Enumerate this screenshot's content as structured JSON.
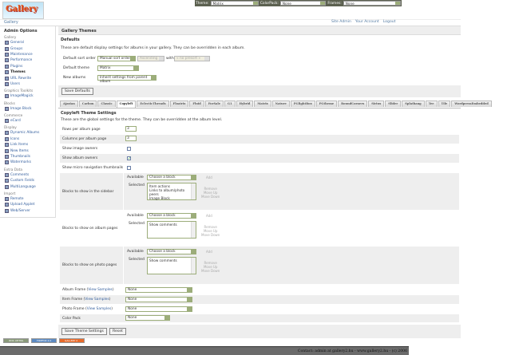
{
  "logo": "Gallery",
  "topbar": {
    "theme_label": "Theme:",
    "theme_value": "Matrix",
    "colorpack_label": "ColorPack:",
    "colorpack_value": "None",
    "frames_label": "Frames:",
    "frames_value": "None"
  },
  "breadcrumb": "Gallery",
  "toplinks": [
    "Site Admin",
    "Your Account",
    "Logout"
  ],
  "sidebar": {
    "title": "Admin Options",
    "groups": [
      {
        "label": "Gallery",
        "items": [
          "General",
          "Groups",
          "Maintenance",
          "Performance",
          "Plugins",
          "Themes",
          "URL Rewrite",
          "Users"
        ]
      },
      {
        "label": "Graphics Toolkits",
        "items": [
          "ImageMagick"
        ]
      },
      {
        "label": "Blocks",
        "items": [
          "Image Block"
        ]
      },
      {
        "label": "Commerce",
        "items": [
          "eCard"
        ]
      },
      {
        "label": "Display",
        "items": [
          "Dynamic Albums",
          "Icons",
          "Link Items",
          "New Items",
          "Thumbnails",
          "Watermarks"
        ]
      },
      {
        "label": "Extra Data",
        "items": [
          "Comments",
          "Custom Fields",
          "MultiLanguage"
        ]
      },
      {
        "label": "Import",
        "items": [
          "Remote",
          "Upload Applet",
          "Web/Server"
        ]
      }
    ]
  },
  "page_title": "Gallery Themes",
  "defaults": {
    "title": "Defaults",
    "description": "These are default display settings for albums in your gallery. They can be overridden in each album.",
    "sort_label": "Default sort order",
    "sort_value": "Manual sort order",
    "sort_dir": "Ascending",
    "with_label": "with",
    "presort": "« no presort »",
    "theme_label": "Default theme",
    "theme_value": "Matrix",
    "new_albums_label": "New albums",
    "new_albums_value": "Inherit settings from parent album",
    "save": "Save Defaults"
  },
  "tabs": [
    "Ajaxian",
    "Carbon",
    "Classic",
    "Copyleft",
    "EclecticThreads",
    "Floatrix",
    "Fluid",
    "ForSale",
    "G1",
    "Hybrid",
    "Matrix",
    "Nature",
    "PGlightBox",
    "PGtheme",
    "RoundCorners",
    "Siriux",
    "Slider",
    "Splatbang",
    "Tee",
    "Tile",
    "WordpressEmbedded"
  ],
  "active_tab": "Copyleft",
  "settings": {
    "title": "Copyleft Theme Settings",
    "description": "These are the global settings for the theme. They can be overridden at the album level.",
    "rows_label": "Rows per album page",
    "rows_value": "3",
    "cols_label": "Columns per album page",
    "cols_value": "3",
    "image_owners_label": "Show image owners",
    "image_owners": false,
    "album_owners_label": "Show album owners",
    "album_owners": true,
    "micro_label": "Show micro navigation thumbnails",
    "micro": false,
    "available_label": "Available",
    "selected_label": "Selected",
    "choose": "Choose a block",
    "add": "Add",
    "remove": "Remove",
    "move_up": "Move Up",
    "move_down": "Move Down",
    "sidebar_blocks_label": "Blocks to show in the sidebar",
    "sidebar_blocks": [
      "Item actions",
      "Links to album/photo peers",
      "Image Block"
    ],
    "album_blocks_label": "Blocks to show on album pages",
    "album_blocks": [
      "Show comments"
    ],
    "photo_blocks_label": "Blocks to show on photo pages",
    "photo_blocks": [
      "Show comments"
    ],
    "album_frame_label": "Album Frame (",
    "item_frame_label": "Item Frame (",
    "photo_frame_label": "Photo Frame (",
    "view_samples": "View Samples",
    "close_paren": ")",
    "album_frame": "None",
    "item_frame": "None",
    "photo_frame": "None",
    "color_pack_label": "Color Pack",
    "color_pack": "None",
    "save": "Save Theme Settings",
    "reset": "Reset"
  },
  "badges": [
    "W3C XHTML 1.0",
    "FIREFOX 2.0",
    "GALLERY 2"
  ],
  "footer": "Contact: admin at gallery2.hu - www.gallery2.hu - (c) 2006",
  "colors": {
    "link": "#335e9d",
    "topbar": "#5c6150",
    "select_accent": "#9cad7a",
    "footer": "#6b6b6b"
  }
}
